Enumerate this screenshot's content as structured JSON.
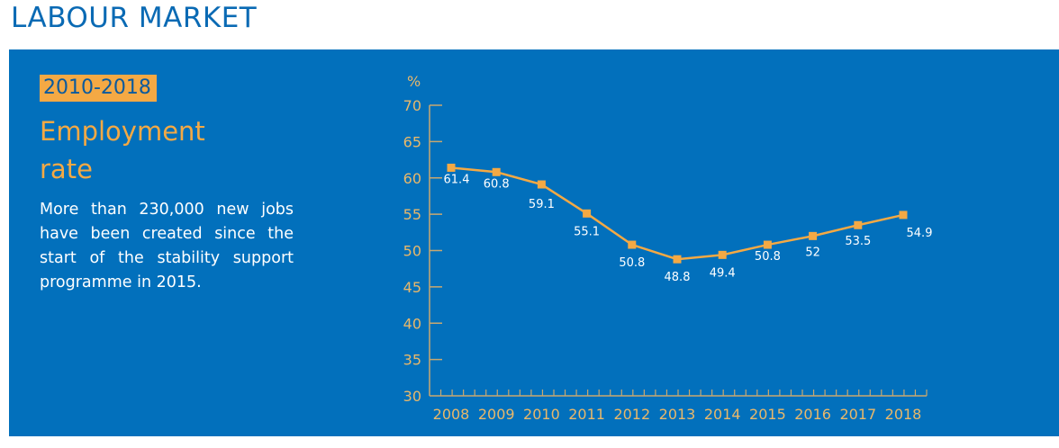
{
  "header": {
    "title": "LABOUR MARKET"
  },
  "panel": {
    "badge": "2010-2018",
    "subtitle_line1": "Employment",
    "subtitle_line2": "rate",
    "description": "More than  230,000 new jobs have been created since the start of the stability support programme in 2015."
  },
  "colors": {
    "panel": "#0270bc",
    "accent": "#f4a944",
    "title": "#0a6ab4",
    "axis": "#c9a870"
  },
  "chart_data": {
    "type": "line",
    "title": "Employment rate",
    "ylabel": "%",
    "xlabel": "",
    "ylim": [
      30,
      70
    ],
    "yticks": [
      30,
      35,
      40,
      45,
      50,
      55,
      60,
      65,
      70
    ],
    "x": [
      "2008",
      "2009",
      "2010",
      "2011",
      "2012",
      "2013",
      "2014",
      "2015",
      "2016",
      "2017",
      "2018"
    ],
    "series": [
      {
        "name": "Employment rate",
        "values": [
          61.4,
          60.8,
          59.1,
          55.1,
          50.8,
          48.8,
          49.4,
          50.8,
          52,
          53.5,
          54.9
        ],
        "labels": [
          "61.4",
          "60.8",
          "59.1",
          "55.1",
          "50.8",
          "48.8",
          "49.4",
          "50.8",
          "52",
          "53.5",
          "54.9"
        ]
      }
    ],
    "grid": false,
    "legend": "none"
  }
}
